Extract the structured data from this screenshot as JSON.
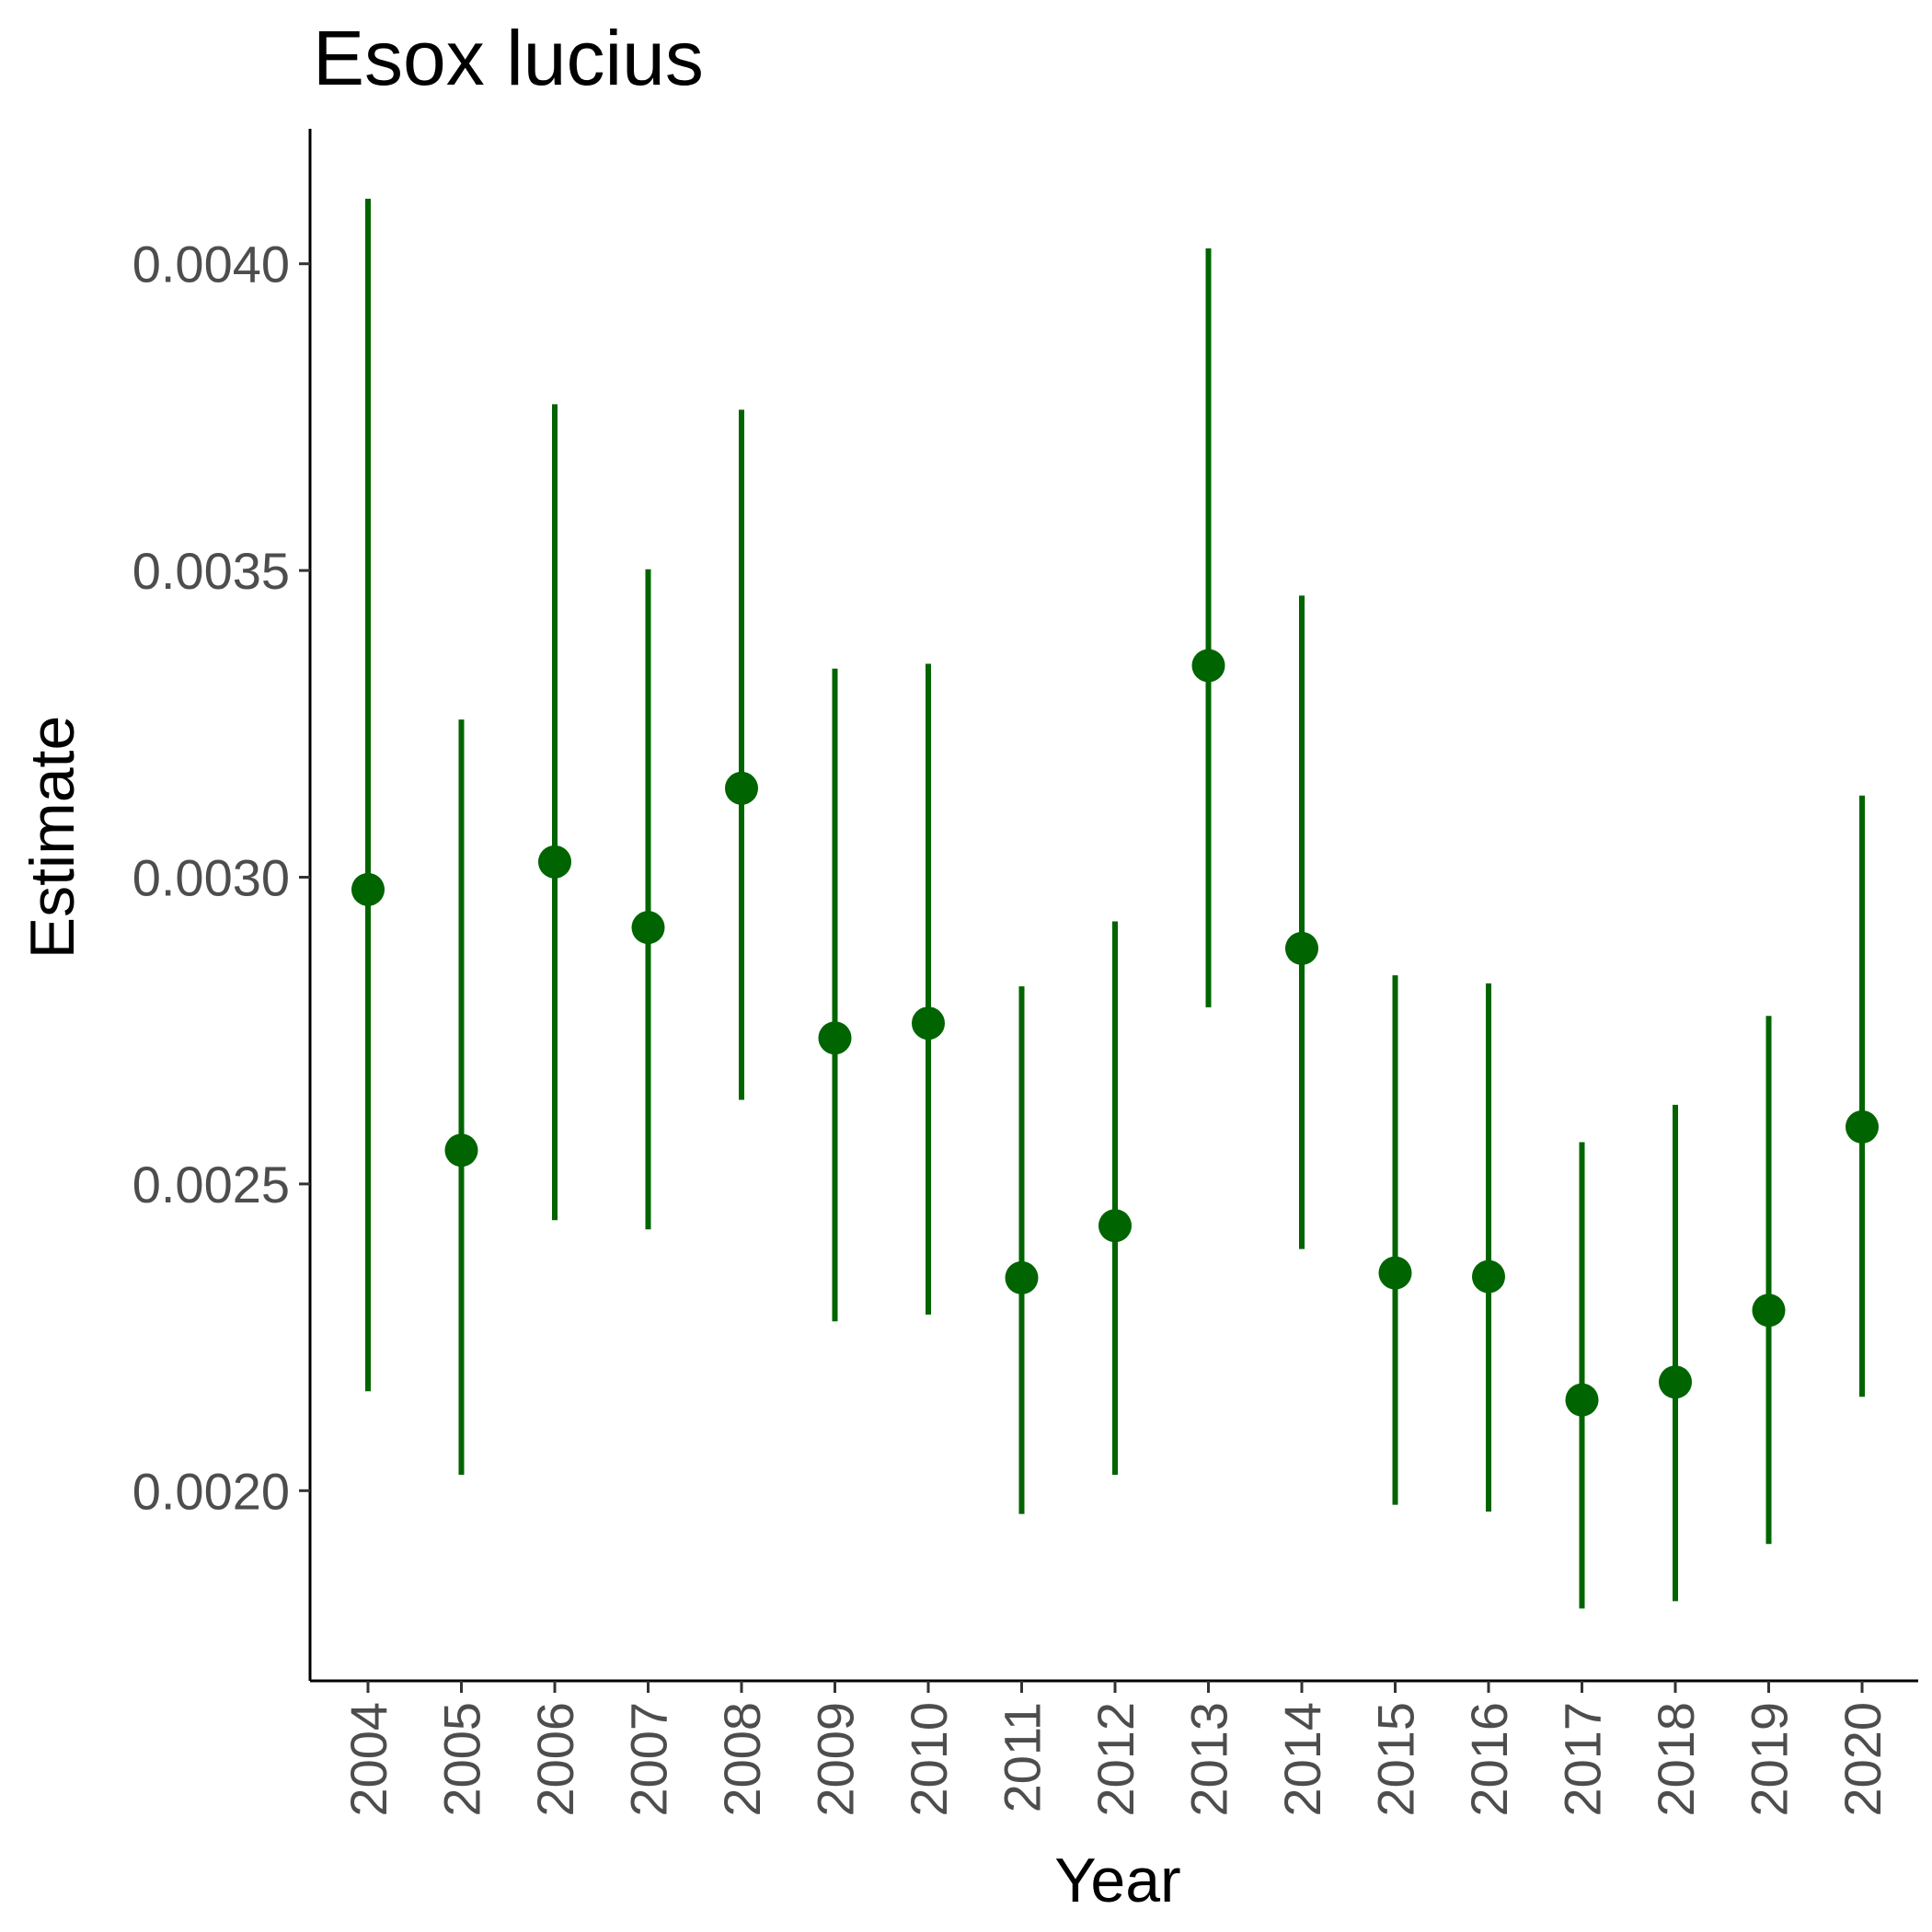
{
  "chart_data": {
    "type": "scatter",
    "title": "Esox lucius",
    "xlabel": "Year",
    "ylabel": "Estimate",
    "color": "#006400",
    "ylim": [
      0.00169,
      0.00422
    ],
    "y_ticks": [
      "0.0020",
      "0.0025",
      "0.0030",
      "0.0035",
      "0.0040"
    ],
    "y_tick_values": [
      0.002,
      0.0025,
      0.003,
      0.0035,
      0.004
    ],
    "categories": [
      "2004",
      "2005",
      "2006",
      "2007",
      "2008",
      "2009",
      "2010",
      "2011",
      "2012",
      "2013",
      "2014",
      "2015",
      "2016",
      "2017",
      "2018",
      "2019",
      "2020"
    ],
    "estimates": [
      0.00298,
      0.002555,
      0.003025,
      0.002918,
      0.003145,
      0.002738,
      0.002762,
      0.002347,
      0.002432,
      0.003345,
      0.002884,
      0.002355,
      0.002349,
      0.002148,
      0.002177,
      0.002294,
      0.002593
    ],
    "lower": [
      0.002162,
      0.002026,
      0.002441,
      0.002426,
      0.002637,
      0.002276,
      0.002287,
      0.001962,
      0.002026,
      0.002788,
      0.002394,
      0.001977,
      0.001966,
      0.001808,
      0.00182,
      0.001913,
      0.002153
    ],
    "upper": [
      0.004106,
      0.003257,
      0.003771,
      0.003502,
      0.003762,
      0.00334,
      0.003348,
      0.002822,
      0.002928,
      0.004025,
      0.003459,
      0.00284,
      0.002827,
      0.002568,
      0.002629,
      0.002774,
      0.003133
    ],
    "grid": false,
    "legend": "none"
  }
}
